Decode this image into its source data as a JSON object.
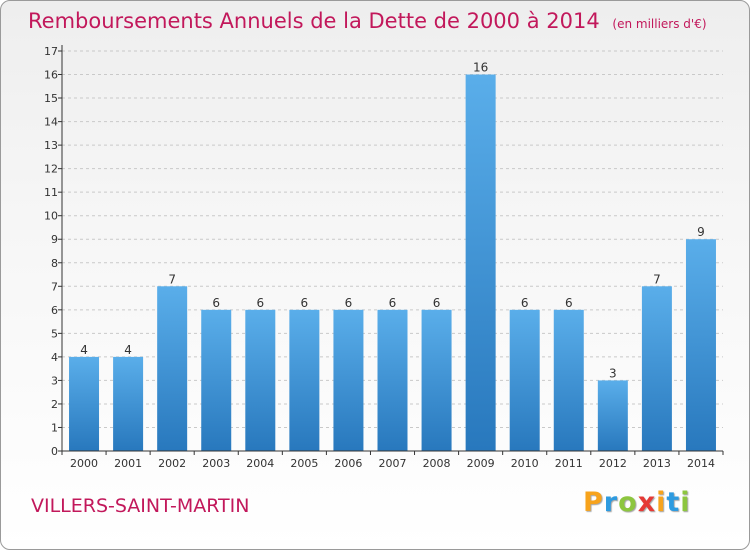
{
  "header": {
    "title": "Remboursements Annuels de la Dette de 2000 à 2014",
    "subtitle": "(en milliers d'€)"
  },
  "footer": {
    "place": "VILLERS-SAINT-MARTIN",
    "logo": [
      "P",
      "r",
      "o",
      "x",
      "i",
      "t",
      "i"
    ],
    "logo_colors": [
      "#f7a31c",
      "#2e9be0",
      "#8dc63f",
      "#e53935",
      "#f7a31c",
      "#2e9be0",
      "#8dc63f"
    ]
  },
  "colors": {
    "title": "#c2185b",
    "bar_light": "#5aaeea",
    "bar_dark": "#2878bd",
    "axis": "#333333"
  },
  "chart_data": {
    "type": "bar",
    "title": "Remboursements Annuels de la Dette de 2000 à 2014",
    "subtitle": "(en milliers d'€)",
    "categories": [
      "2000",
      "2001",
      "2002",
      "2003",
      "2004",
      "2005",
      "2006",
      "2007",
      "2008",
      "2009",
      "2010",
      "2011",
      "2012",
      "2013",
      "2014"
    ],
    "values": [
      4,
      4,
      7,
      6,
      6,
      6,
      6,
      6,
      6,
      16,
      6,
      6,
      3,
      7,
      9
    ],
    "yticks": [
      0,
      1,
      2,
      3,
      4,
      5,
      6,
      7,
      8,
      9,
      10,
      11,
      12,
      13,
      14,
      15,
      16,
      17
    ],
    "ylim": [
      0,
      17
    ],
    "grid": true,
    "xlabel": "",
    "ylabel": ""
  }
}
